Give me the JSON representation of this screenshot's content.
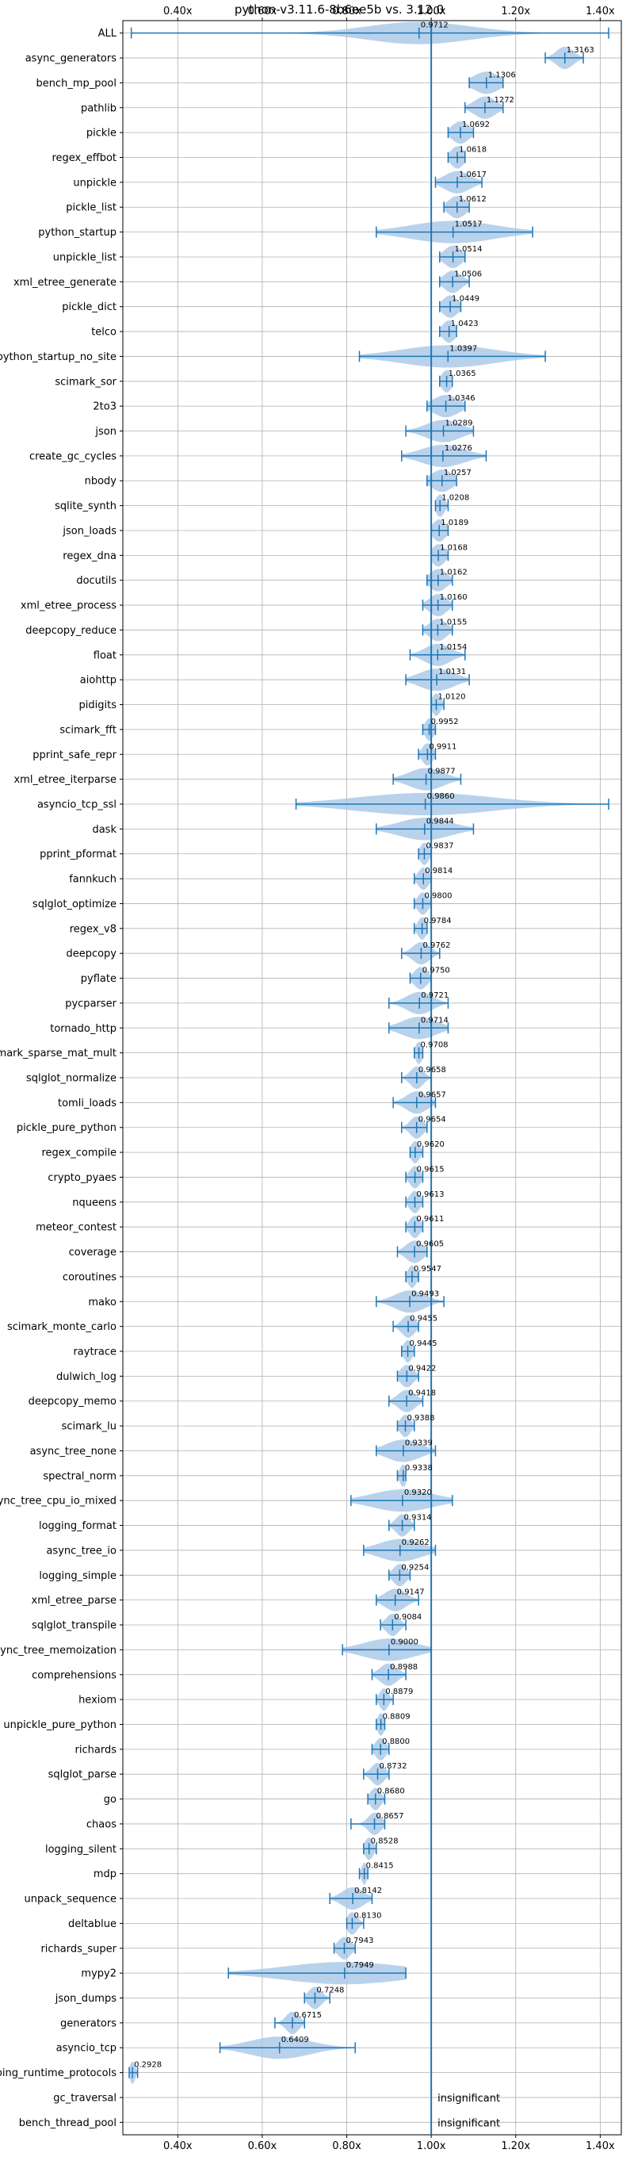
{
  "chart_data": {
    "type": "violin",
    "title": "python-v3.11.6-8b6ee5b vs. 3.12.0",
    "xlim": [
      0.27,
      1.45
    ],
    "xticks": [
      0.4,
      0.6,
      0.8,
      1.0,
      1.2,
      1.4
    ],
    "xtick_labels": [
      "0.40x",
      "0.60x",
      "0.80x",
      "1.00x",
      "1.20x",
      "1.40x"
    ],
    "reference_line": 1.0,
    "grid": true,
    "insignificant_label": "insignificant",
    "benchmarks": [
      {
        "name": "ALL",
        "value": "0.9712",
        "median": 0.9712,
        "lo": 0.29,
        "hi": 1.42,
        "spread": 0.12
      },
      {
        "name": "async_generators",
        "value": "1.3163",
        "median": 1.3163,
        "lo": 1.27,
        "hi": 1.36,
        "spread": 0.02
      },
      {
        "name": "bench_mp_pool",
        "value": "1.1306",
        "median": 1.1306,
        "lo": 1.09,
        "hi": 1.17,
        "spread": 0.03
      },
      {
        "name": "pathlib",
        "value": "1.1272",
        "median": 1.1272,
        "lo": 1.08,
        "hi": 1.17,
        "spread": 0.025
      },
      {
        "name": "pickle",
        "value": "1.0692",
        "median": 1.0692,
        "lo": 1.04,
        "hi": 1.1,
        "spread": 0.02
      },
      {
        "name": "regex_effbot",
        "value": "1.0618",
        "median": 1.0618,
        "lo": 1.04,
        "hi": 1.08,
        "spread": 0.015
      },
      {
        "name": "unpickle",
        "value": "1.0617",
        "median": 1.0617,
        "lo": 1.01,
        "hi": 1.12,
        "spread": 0.03
      },
      {
        "name": "pickle_list",
        "value": "1.0612",
        "median": 1.0612,
        "lo": 1.03,
        "hi": 1.09,
        "spread": 0.02
      },
      {
        "name": "python_startup",
        "value": "1.0517",
        "median": 1.0517,
        "lo": 0.87,
        "hi": 1.24,
        "spread": 0.1
      },
      {
        "name": "unpickle_list",
        "value": "1.0514",
        "median": 1.0514,
        "lo": 1.02,
        "hi": 1.08,
        "spread": 0.02
      },
      {
        "name": "xml_etree_generate",
        "value": "1.0506",
        "median": 1.0506,
        "lo": 1.02,
        "hi": 1.09,
        "spread": 0.02
      },
      {
        "name": "pickle_dict",
        "value": "1.0449",
        "median": 1.0449,
        "lo": 1.02,
        "hi": 1.07,
        "spread": 0.018
      },
      {
        "name": "telco",
        "value": "1.0423",
        "median": 1.0423,
        "lo": 1.02,
        "hi": 1.06,
        "spread": 0.015
      },
      {
        "name": "python_startup_no_site",
        "value": "1.0397",
        "median": 1.0397,
        "lo": 0.83,
        "hi": 1.27,
        "spread": 0.11
      },
      {
        "name": "scimark_sor",
        "value": "1.0365",
        "median": 1.0365,
        "lo": 1.02,
        "hi": 1.05,
        "spread": 0.012
      },
      {
        "name": "2to3",
        "value": "1.0346",
        "median": 1.0346,
        "lo": 0.99,
        "hi": 1.08,
        "spread": 0.03
      },
      {
        "name": "json",
        "value": "1.0289",
        "median": 1.0289,
        "lo": 0.94,
        "hi": 1.1,
        "spread": 0.04
      },
      {
        "name": "create_gc_cycles",
        "value": "1.0276",
        "median": 1.0276,
        "lo": 0.93,
        "hi": 1.13,
        "spread": 0.05
      },
      {
        "name": "nbody",
        "value": "1.0257",
        "median": 1.0257,
        "lo": 0.99,
        "hi": 1.06,
        "spread": 0.025
      },
      {
        "name": "sqlite_synth",
        "value": "1.0208",
        "median": 1.0208,
        "lo": 1.01,
        "hi": 1.04,
        "spread": 0.01
      },
      {
        "name": "json_loads",
        "value": "1.0189",
        "median": 1.0189,
        "lo": 1.0,
        "hi": 1.04,
        "spread": 0.015
      },
      {
        "name": "regex_dna",
        "value": "1.0168",
        "median": 1.0168,
        "lo": 1.0,
        "hi": 1.04,
        "spread": 0.015
      },
      {
        "name": "docutils",
        "value": "1.0162",
        "median": 1.0162,
        "lo": 0.99,
        "hi": 1.05,
        "spread": 0.02
      },
      {
        "name": "xml_etree_process",
        "value": "1.0160",
        "median": 1.016,
        "lo": 0.98,
        "hi": 1.05,
        "spread": 0.02
      },
      {
        "name": "deepcopy_reduce",
        "value": "1.0155",
        "median": 1.0155,
        "lo": 0.98,
        "hi": 1.05,
        "spread": 0.02
      },
      {
        "name": "float",
        "value": "1.0154",
        "median": 1.0154,
        "lo": 0.95,
        "hi": 1.08,
        "spread": 0.03
      },
      {
        "name": "aiohttp",
        "value": "1.0131",
        "median": 1.0131,
        "lo": 0.94,
        "hi": 1.09,
        "spread": 0.04
      },
      {
        "name": "pidigits",
        "value": "1.0120",
        "median": 1.012,
        "lo": 1.0,
        "hi": 1.03,
        "spread": 0.01
      },
      {
        "name": "scimark_fft",
        "value": "0.9952",
        "median": 0.9952,
        "lo": 0.98,
        "hi": 1.01,
        "spread": 0.01
      },
      {
        "name": "pprint_safe_repr",
        "value": "0.9911",
        "median": 0.9911,
        "lo": 0.97,
        "hi": 1.01,
        "spread": 0.012
      },
      {
        "name": "xml_etree_iterparse",
        "value": "0.9877",
        "median": 0.9877,
        "lo": 0.91,
        "hi": 1.07,
        "spread": 0.04
      },
      {
        "name": "asyncio_tcp_ssl",
        "value": "0.9860",
        "median": 0.986,
        "lo": 0.68,
        "hi": 1.42,
        "spread": 0.16
      },
      {
        "name": "dask",
        "value": "0.9844",
        "median": 0.9844,
        "lo": 0.87,
        "hi": 1.1,
        "spread": 0.06
      },
      {
        "name": "pprint_pformat",
        "value": "0.9837",
        "median": 0.9837,
        "lo": 0.97,
        "hi": 1.0,
        "spread": 0.01
      },
      {
        "name": "fannkuch",
        "value": "0.9814",
        "median": 0.9814,
        "lo": 0.96,
        "hi": 1.0,
        "spread": 0.012
      },
      {
        "name": "sqlglot_optimize",
        "value": "0.9800",
        "median": 0.98,
        "lo": 0.96,
        "hi": 1.0,
        "spread": 0.012
      },
      {
        "name": "regex_v8",
        "value": "0.9784",
        "median": 0.9784,
        "lo": 0.96,
        "hi": 0.99,
        "spread": 0.01
      },
      {
        "name": "deepcopy",
        "value": "0.9762",
        "median": 0.9762,
        "lo": 0.93,
        "hi": 1.02,
        "spread": 0.02
      },
      {
        "name": "pyflate",
        "value": "0.9750",
        "median": 0.975,
        "lo": 0.95,
        "hi": 1.0,
        "spread": 0.015
      },
      {
        "name": "pycparser",
        "value": "0.9721",
        "median": 0.9721,
        "lo": 0.9,
        "hi": 1.04,
        "spread": 0.03
      },
      {
        "name": "tornado_http",
        "value": "0.9714",
        "median": 0.9714,
        "lo": 0.9,
        "hi": 1.04,
        "spread": 0.04
      },
      {
        "name": "scimark_sparse_mat_mult",
        "value": "0.9708",
        "median": 0.9708,
        "lo": 0.96,
        "hi": 0.98,
        "spread": 0.008
      },
      {
        "name": "sqlglot_normalize",
        "value": "0.9658",
        "median": 0.9658,
        "lo": 0.93,
        "hi": 1.0,
        "spread": 0.015
      },
      {
        "name": "tomli_loads",
        "value": "0.9657",
        "median": 0.9657,
        "lo": 0.91,
        "hi": 1.01,
        "spread": 0.025
      },
      {
        "name": "pickle_pure_python",
        "value": "0.9654",
        "median": 0.9654,
        "lo": 0.93,
        "hi": 0.99,
        "spread": 0.015
      },
      {
        "name": "regex_compile",
        "value": "0.9620",
        "median": 0.962,
        "lo": 0.95,
        "hi": 0.98,
        "spread": 0.01
      },
      {
        "name": "crypto_pyaes",
        "value": "0.9615",
        "median": 0.9615,
        "lo": 0.94,
        "hi": 0.98,
        "spread": 0.012
      },
      {
        "name": "nqueens",
        "value": "0.9613",
        "median": 0.9613,
        "lo": 0.94,
        "hi": 0.98,
        "spread": 0.012
      },
      {
        "name": "meteor_contest",
        "value": "0.9611",
        "median": 0.9611,
        "lo": 0.94,
        "hi": 0.98,
        "spread": 0.012
      },
      {
        "name": "coverage",
        "value": "0.9605",
        "median": 0.9605,
        "lo": 0.92,
        "hi": 0.99,
        "spread": 0.02
      },
      {
        "name": "coroutines",
        "value": "0.9547",
        "median": 0.9547,
        "lo": 0.94,
        "hi": 0.97,
        "spread": 0.01
      },
      {
        "name": "mako",
        "value": "0.9493",
        "median": 0.9493,
        "lo": 0.87,
        "hi": 1.03,
        "spread": 0.035
      },
      {
        "name": "scimark_monte_carlo",
        "value": "0.9455",
        "median": 0.9455,
        "lo": 0.91,
        "hi": 0.97,
        "spread": 0.015
      },
      {
        "name": "raytrace",
        "value": "0.9445",
        "median": 0.9445,
        "lo": 0.93,
        "hi": 0.96,
        "spread": 0.01
      },
      {
        "name": "dulwich_log",
        "value": "0.9422",
        "median": 0.9422,
        "lo": 0.92,
        "hi": 0.97,
        "spread": 0.015
      },
      {
        "name": "deepcopy_memo",
        "value": "0.9418",
        "median": 0.9418,
        "lo": 0.9,
        "hi": 0.98,
        "spread": 0.02
      },
      {
        "name": "scimark_lu",
        "value": "0.9388",
        "median": 0.9388,
        "lo": 0.92,
        "hi": 0.96,
        "spread": 0.012
      },
      {
        "name": "async_tree_none",
        "value": "0.9339",
        "median": 0.9339,
        "lo": 0.87,
        "hi": 1.01,
        "spread": 0.04
      },
      {
        "name": "spectral_norm",
        "value": "0.9338",
        "median": 0.9338,
        "lo": 0.92,
        "hi": 0.94,
        "spread": 0.008
      },
      {
        "name": "async_tree_cpu_io_mixed",
        "value": "0.9320",
        "median": 0.932,
        "lo": 0.81,
        "hi": 1.05,
        "spread": 0.07
      },
      {
        "name": "logging_format",
        "value": "0.9314",
        "median": 0.9314,
        "lo": 0.9,
        "hi": 0.96,
        "spread": 0.015
      },
      {
        "name": "async_tree_io",
        "value": "0.9262",
        "median": 0.9262,
        "lo": 0.84,
        "hi": 1.01,
        "spread": 0.05
      },
      {
        "name": "logging_simple",
        "value": "0.9254",
        "median": 0.9254,
        "lo": 0.9,
        "hi": 0.95,
        "spread": 0.015
      },
      {
        "name": "xml_etree_parse",
        "value": "0.9147",
        "median": 0.9147,
        "lo": 0.87,
        "hi": 0.97,
        "spread": 0.025
      },
      {
        "name": "sqlglot_transpile",
        "value": "0.9084",
        "median": 0.9084,
        "lo": 0.88,
        "hi": 0.94,
        "spread": 0.015
      },
      {
        "name": "async_tree_memoization",
        "value": "0.9000",
        "median": 0.9,
        "lo": 0.79,
        "hi": 1.0,
        "spread": 0.06
      },
      {
        "name": "comprehensions",
        "value": "0.8988",
        "median": 0.8988,
        "lo": 0.86,
        "hi": 0.94,
        "spread": 0.02
      },
      {
        "name": "hexiom",
        "value": "0.8879",
        "median": 0.8879,
        "lo": 0.87,
        "hi": 0.91,
        "spread": 0.01
      },
      {
        "name": "unpickle_pure_python",
        "value": "0.8809",
        "median": 0.8809,
        "lo": 0.87,
        "hi": 0.89,
        "spread": 0.008
      },
      {
        "name": "richards",
        "value": "0.8800",
        "median": 0.88,
        "lo": 0.86,
        "hi": 0.9,
        "spread": 0.012
      },
      {
        "name": "sqlglot_parse",
        "value": "0.8732",
        "median": 0.8732,
        "lo": 0.84,
        "hi": 0.9,
        "spread": 0.015
      },
      {
        "name": "go",
        "value": "0.8680",
        "median": 0.868,
        "lo": 0.85,
        "hi": 0.89,
        "spread": 0.012
      },
      {
        "name": "chaos",
        "value": "0.8657",
        "median": 0.8657,
        "lo": 0.81,
        "hi": 0.89,
        "spread": 0.015
      },
      {
        "name": "logging_silent",
        "value": "0.8528",
        "median": 0.8528,
        "lo": 0.84,
        "hi": 0.87,
        "spread": 0.01
      },
      {
        "name": "mdp",
        "value": "0.8415",
        "median": 0.8415,
        "lo": 0.83,
        "hi": 0.85,
        "spread": 0.006
      },
      {
        "name": "unpack_sequence",
        "value": "0.8142",
        "median": 0.8142,
        "lo": 0.76,
        "hi": 0.86,
        "spread": 0.025
      },
      {
        "name": "deltablue",
        "value": "0.8130",
        "median": 0.813,
        "lo": 0.8,
        "hi": 0.84,
        "spread": 0.012
      },
      {
        "name": "richards_super",
        "value": "0.7943",
        "median": 0.7943,
        "lo": 0.77,
        "hi": 0.82,
        "spread": 0.015
      },
      {
        "name": "mypy2",
        "value": "0.7949",
        "median": 0.7949,
        "lo": 0.52,
        "hi": 0.94,
        "spread": 0.14
      },
      {
        "name": "json_dumps",
        "value": "0.7248",
        "median": 0.7248,
        "lo": 0.7,
        "hi": 0.76,
        "spread": 0.015
      },
      {
        "name": "generators",
        "value": "0.6715",
        "median": 0.6715,
        "lo": 0.63,
        "hi": 0.7,
        "spread": 0.015
      },
      {
        "name": "asyncio_tcp",
        "value": "0.6409",
        "median": 0.6409,
        "lo": 0.5,
        "hi": 0.82,
        "spread": 0.07
      },
      {
        "name": "typing_runtime_protocols",
        "value": "0.2928",
        "median": 0.2928,
        "lo": 0.285,
        "hi": 0.305,
        "spread": 0.006
      },
      {
        "name": "gc_traversal",
        "value": "insignificant",
        "median": null,
        "lo": null,
        "hi": null,
        "spread": 0
      },
      {
        "name": "bench_thread_pool",
        "value": "insignificant",
        "median": null,
        "lo": null,
        "hi": null,
        "spread": 0
      }
    ]
  },
  "colors": {
    "violin": "#a7c7e7",
    "line": "#1f77b4",
    "grid": "#b0b0b0",
    "refline": "#1f77b4"
  }
}
